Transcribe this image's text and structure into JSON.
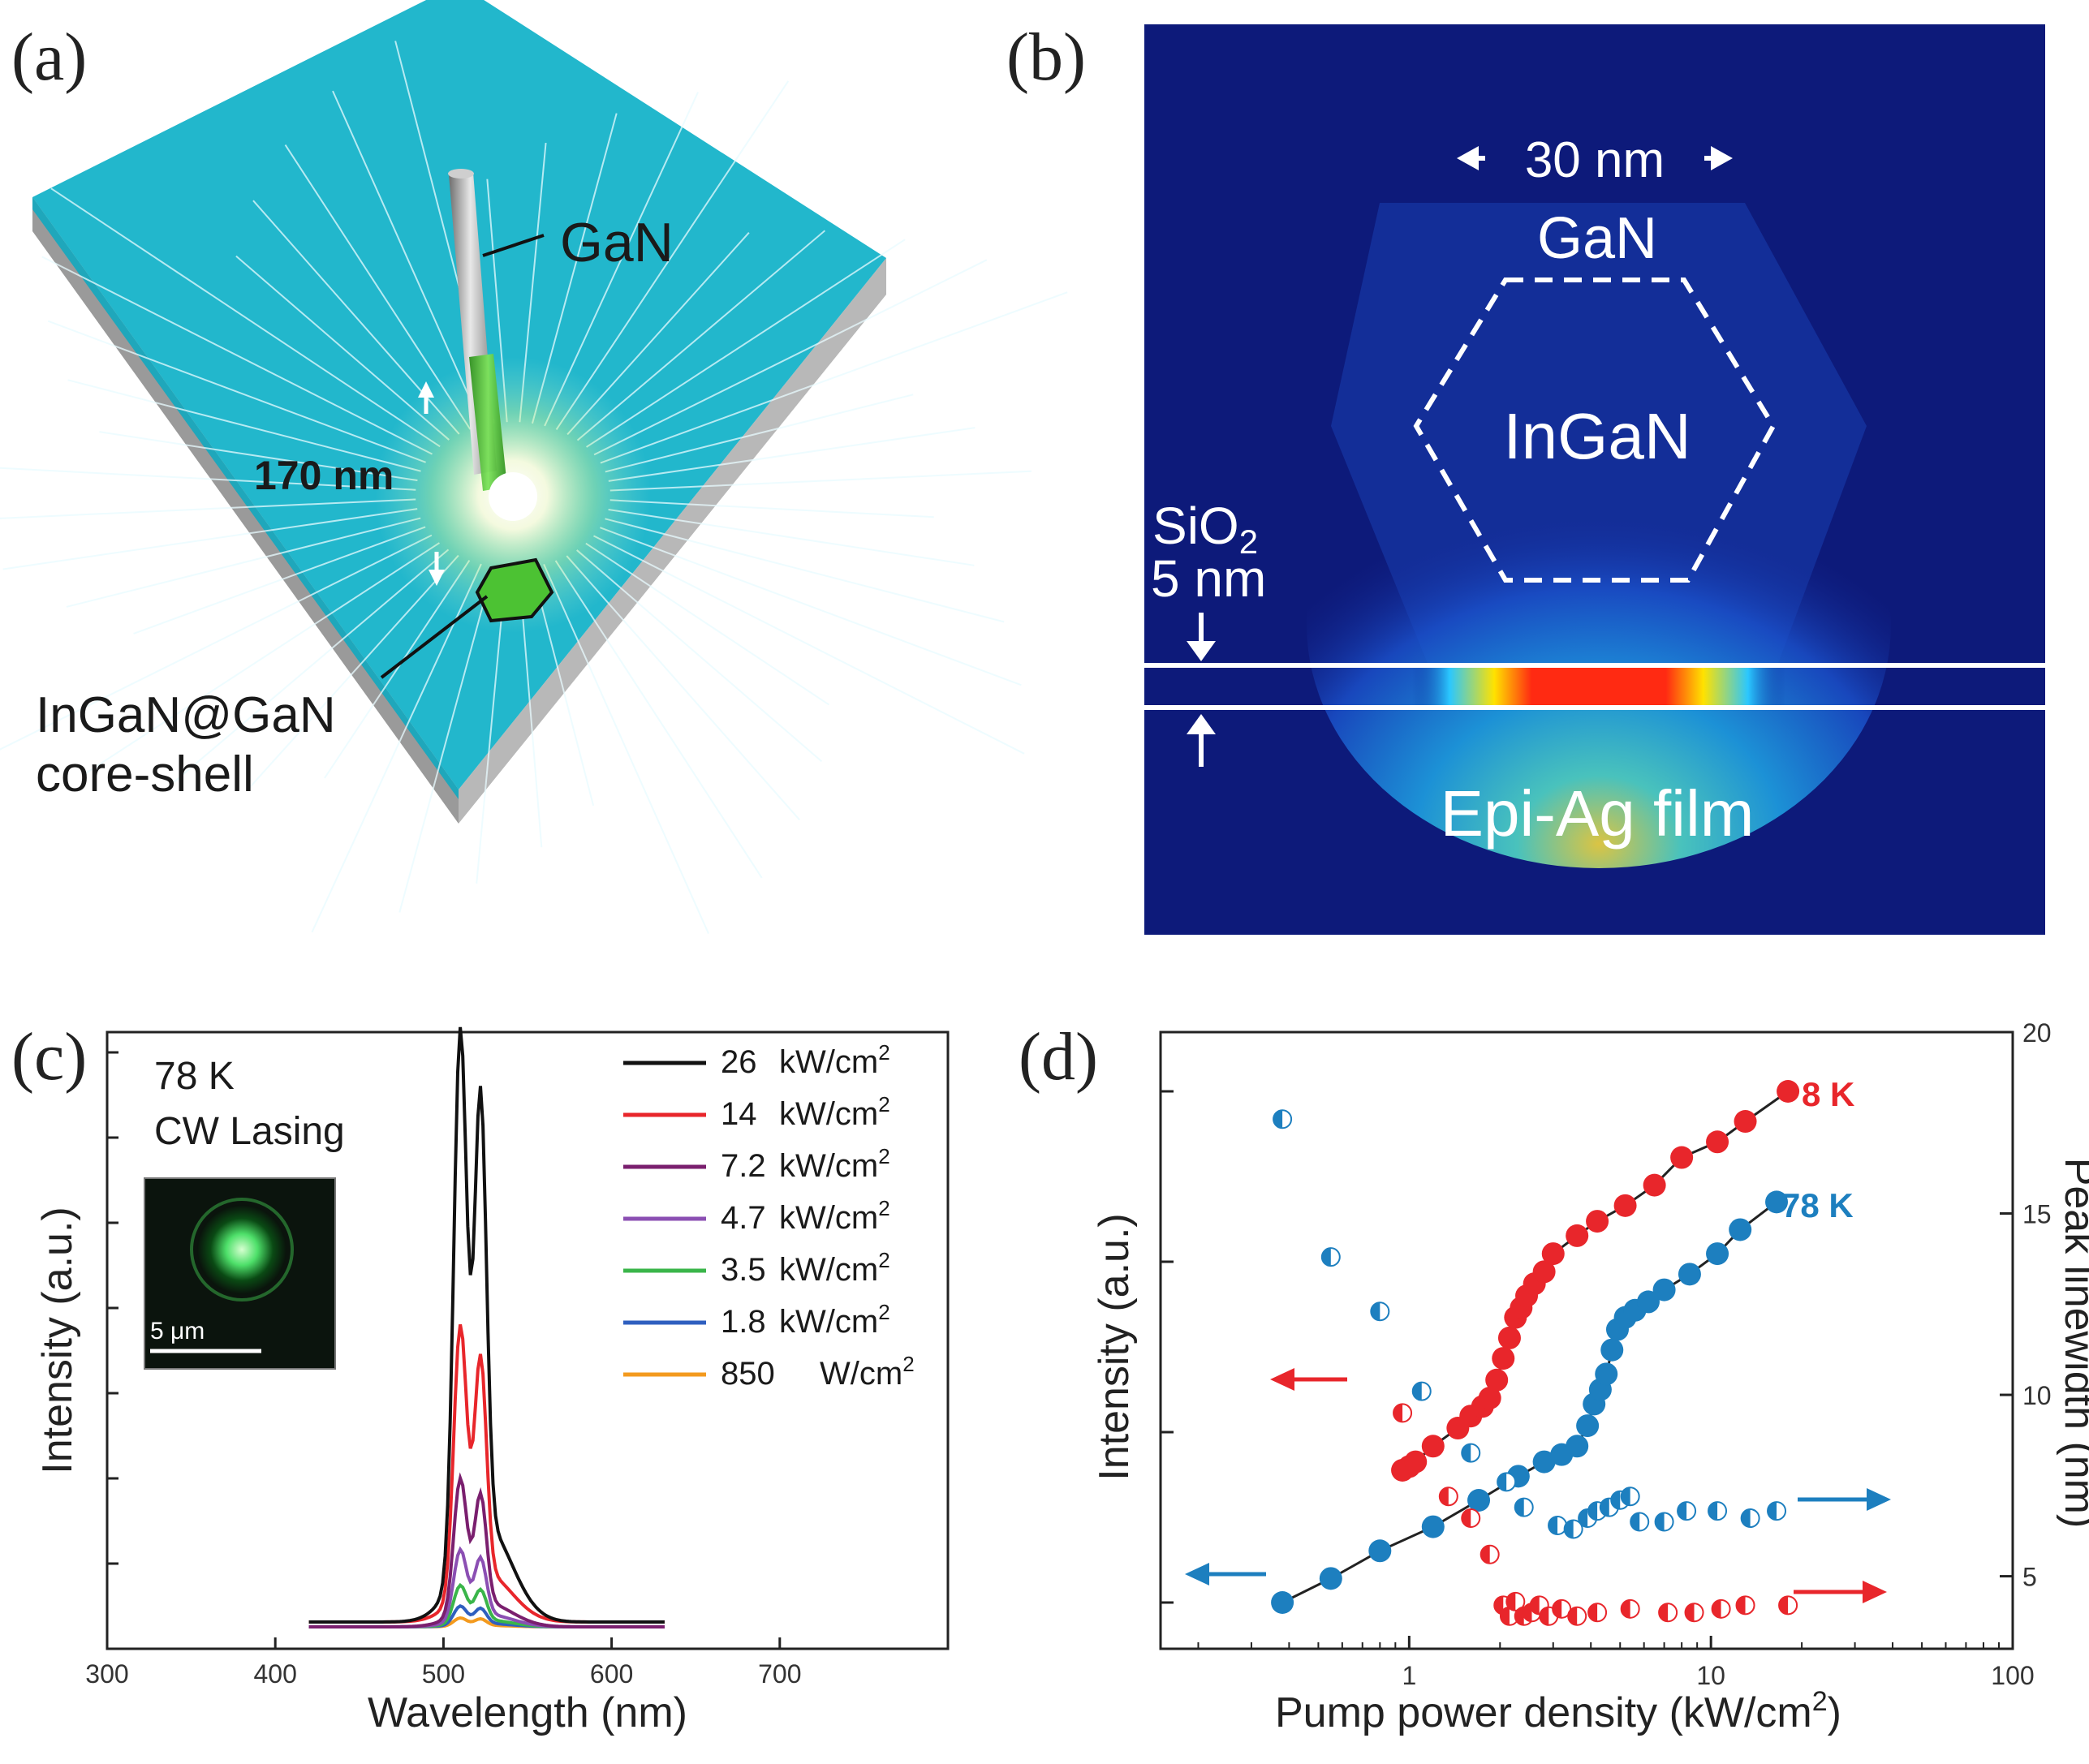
{
  "panels": {
    "a": {
      "letter": "(a)",
      "label_gan": "GaN",
      "label_length": "170 nm",
      "label_core1": "InGaN@GaN",
      "label_core2": "core-shell"
    },
    "b": {
      "letter": "(b)",
      "label_width": "30 nm",
      "label_gan": "GaN",
      "label_ingan": "InGaN",
      "label_sio2": "SiO",
      "label_sio2_sub": "2",
      "label_thickness": "5 nm",
      "label_film": "Epi-Ag film"
    },
    "c": {
      "letter": "(c)",
      "temp": "78 K",
      "mode": "CW Lasing",
      "scalebar": "5 μm"
    },
    "d": {
      "letter": "(d)",
      "label_8k": "8 K",
      "label_78k": "78 K"
    }
  },
  "colors": {
    "red": "#e8262b",
    "blue": "#1d7fbf",
    "background_b": "#0d1a7a"
  },
  "chart_data": [
    {
      "type": "line",
      "title": "",
      "xlabel": "Wavelength (nm)",
      "ylabel": "Intensity (a.u.)",
      "xlim": [
        300,
        800
      ],
      "ylim": [
        0,
        1
      ],
      "xticks": [
        300,
        400,
        500,
        600,
        700
      ],
      "series": [
        {
          "name": "26 kW/cm2",
          "legend_value": "26",
          "legend_unit": "kW/cm",
          "color": "#111111",
          "scale": 1.0
        },
        {
          "name": "14 kW/cm2",
          "legend_value": "14",
          "legend_unit": "kW/cm",
          "color": "#e8262b",
          "scale": 0.5
        },
        {
          "name": "7.2 kW/cm2",
          "legend_value": "7.2",
          "legend_unit": "kW/cm",
          "color": "#7a1f6e",
          "scale": 0.25
        },
        {
          "name": "4.7 kW/cm2",
          "legend_value": "4.7",
          "legend_unit": "kW/cm",
          "color": "#8b4fb3",
          "scale": 0.13
        },
        {
          "name": "3.5 kW/cm2",
          "legend_value": "3.5",
          "legend_unit": "kW/cm",
          "color": "#3ab54a",
          "scale": 0.07
        },
        {
          "name": "1.8 kW/cm2",
          "legend_value": "1.8",
          "legend_unit": "kW/cm",
          "color": "#2f5fbf",
          "scale": 0.035
        },
        {
          "name": "850 W/cm2",
          "legend_value": "850",
          "legend_unit": "W/cm",
          "color": "#f39a1e",
          "scale": 0.015
        }
      ],
      "legend_superscript": "2",
      "peaks_nm": [
        510,
        522
      ],
      "range_nm": [
        420,
        632
      ]
    },
    {
      "type": "scatter",
      "title": "",
      "xlabel": "Pump power density (kW/cm",
      "xlabel_sup": "2",
      "xlabel_end": ")",
      "ylabel": "Intensity (a.u.)",
      "y2label": "Peak linewidth (nm)",
      "xscale": "log",
      "xlim": [
        0.15,
        100
      ],
      "xticks": [
        1,
        10,
        100
      ],
      "y2lim": [
        3,
        20
      ],
      "y2ticks": [
        5,
        10,
        15,
        20
      ],
      "ylim_log": [
        0,
        4.5
      ],
      "series": [
        {
          "name": "8 K intensity",
          "color": "#e8262b",
          "axis": "left",
          "x": [
            0.95,
            1.0,
            1.05,
            1.2,
            1.45,
            1.6,
            1.75,
            1.85,
            1.95,
            2.05,
            2.15,
            2.25,
            2.35,
            2.45,
            2.6,
            2.8,
            3.0,
            3.6,
            4.2,
            5.2,
            6.5,
            8.0,
            10.5,
            13.0,
            18.0
          ],
          "y": [
            0.55,
            0.58,
            0.62,
            0.75,
            0.9,
            1.0,
            1.08,
            1.15,
            1.3,
            1.48,
            1.65,
            1.82,
            1.9,
            2.0,
            2.1,
            2.2,
            2.35,
            2.5,
            2.62,
            2.75,
            2.92,
            3.15,
            3.28,
            3.45,
            3.7
          ]
        },
        {
          "name": "78 K intensity",
          "color": "#1d7fbf",
          "axis": "left",
          "x": [
            0.38,
            0.55,
            0.8,
            1.2,
            1.7,
            2.3,
            2.8,
            3.2,
            3.6,
            3.9,
            4.1,
            4.3,
            4.5,
            4.7,
            4.9,
            5.2,
            5.6,
            6.2,
            7.0,
            8.5,
            10.5,
            12.5,
            16.5
          ],
          "y": [
            -0.55,
            -0.35,
            -0.12,
            0.08,
            0.3,
            0.5,
            0.62,
            0.68,
            0.75,
            0.92,
            1.1,
            1.22,
            1.35,
            1.55,
            1.72,
            1.82,
            1.88,
            1.95,
            2.05,
            2.18,
            2.35,
            2.55,
            2.78
          ]
        },
        {
          "name": "78 K linewidth",
          "color": "#1d7fbf",
          "axis": "right",
          "half": true,
          "x": [
            0.38,
            0.55,
            0.8,
            1.1,
            1.6,
            2.1,
            2.4,
            3.1,
            3.5,
            3.9,
            4.2,
            4.6,
            5.0,
            5.4,
            5.8,
            7.0,
            8.3,
            10.5,
            13.5,
            16.5
          ],
          "y": [
            17.6,
            13.8,
            12.3,
            10.1,
            8.4,
            7.6,
            6.9,
            6.4,
            6.3,
            6.6,
            6.8,
            6.9,
            7.1,
            7.2,
            6.5,
            6.5,
            6.8,
            6.8,
            6.6,
            6.8
          ]
        },
        {
          "name": "8 K linewidth",
          "color": "#e8262b",
          "axis": "right",
          "half": true,
          "x": [
            0.95,
            1.35,
            1.6,
            1.85,
            2.05,
            2.15,
            2.25,
            2.4,
            2.55,
            2.7,
            2.9,
            3.2,
            3.6,
            4.2,
            5.4,
            7.2,
            8.8,
            10.8,
            13.0,
            18.0
          ],
          "y": [
            9.5,
            7.2,
            6.6,
            5.6,
            4.2,
            3.9,
            4.3,
            3.9,
            4.0,
            4.2,
            3.9,
            4.1,
            3.9,
            4.0,
            4.1,
            4.0,
            4.0,
            4.1,
            4.2,
            4.2
          ]
        }
      ]
    }
  ]
}
